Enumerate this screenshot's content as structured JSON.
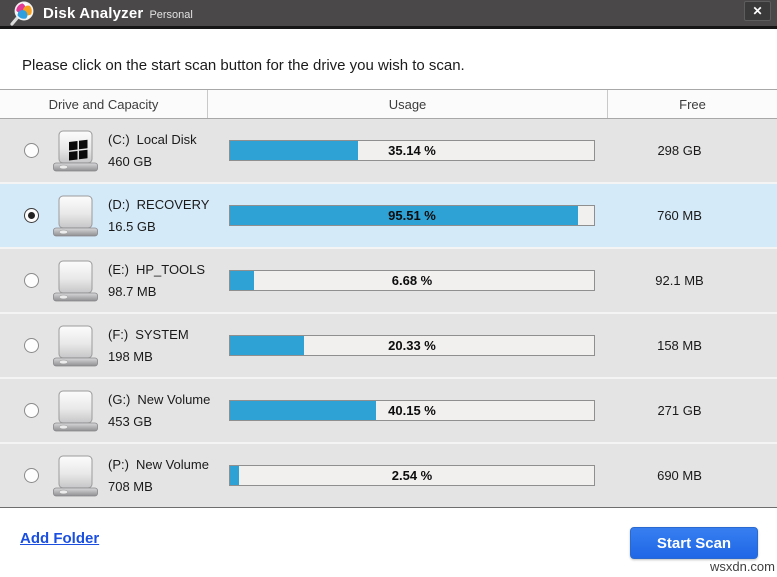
{
  "window": {
    "title": "Disk Analyzer",
    "edition": "Personal",
    "close_label": "✕"
  },
  "instruction": "Please click on the start scan button for the drive you wish to scan.",
  "table": {
    "columns": {
      "drive": "Drive and Capacity",
      "usage": "Usage",
      "free": "Free"
    },
    "rows": [
      {
        "letter": "(C:)",
        "name": "Local Disk",
        "capacity": "460 GB",
        "usage_pct": 35.14,
        "usage_label": "35.14 %",
        "free": "298 GB",
        "selected": false,
        "icon": "windows-drive"
      },
      {
        "letter": "(D:)",
        "name": "RECOVERY",
        "capacity": "16.5 GB",
        "usage_pct": 95.51,
        "usage_label": "95.51 %",
        "free": "760 MB",
        "selected": true,
        "icon": "drive"
      },
      {
        "letter": "(E:)",
        "name": "HP_TOOLS",
        "capacity": "98.7 MB",
        "usage_pct": 6.68,
        "usage_label": "6.68 %",
        "free": "92.1 MB",
        "selected": false,
        "icon": "drive"
      },
      {
        "letter": "(F:)",
        "name": "SYSTEM",
        "capacity": "198 MB",
        "usage_pct": 20.33,
        "usage_label": "20.33 %",
        "free": "158 MB",
        "selected": false,
        "icon": "drive"
      },
      {
        "letter": "(G:)",
        "name": "New Volume",
        "capacity": "453 GB",
        "usage_pct": 40.15,
        "usage_label": "40.15 %",
        "free": "271 GB",
        "selected": false,
        "icon": "drive"
      },
      {
        "letter": "(P:)",
        "name": "New Volume",
        "capacity": "708 MB",
        "usage_pct": 2.54,
        "usage_label": "2.54 %",
        "free": "690 MB",
        "selected": false,
        "icon": "drive"
      }
    ]
  },
  "footer": {
    "add_folder_label": "Add Folder",
    "start_scan_label": "Start Scan"
  },
  "watermark": "wsxdn.com",
  "colors": {
    "titlebar": "#4a4848",
    "row_bg": "#e5e4e4",
    "selected_row_bg": "#d5eaf8",
    "bar_fill": "#2fa2d5",
    "button_blue": "#2470e8",
    "link_blue": "#1b4fe0"
  }
}
